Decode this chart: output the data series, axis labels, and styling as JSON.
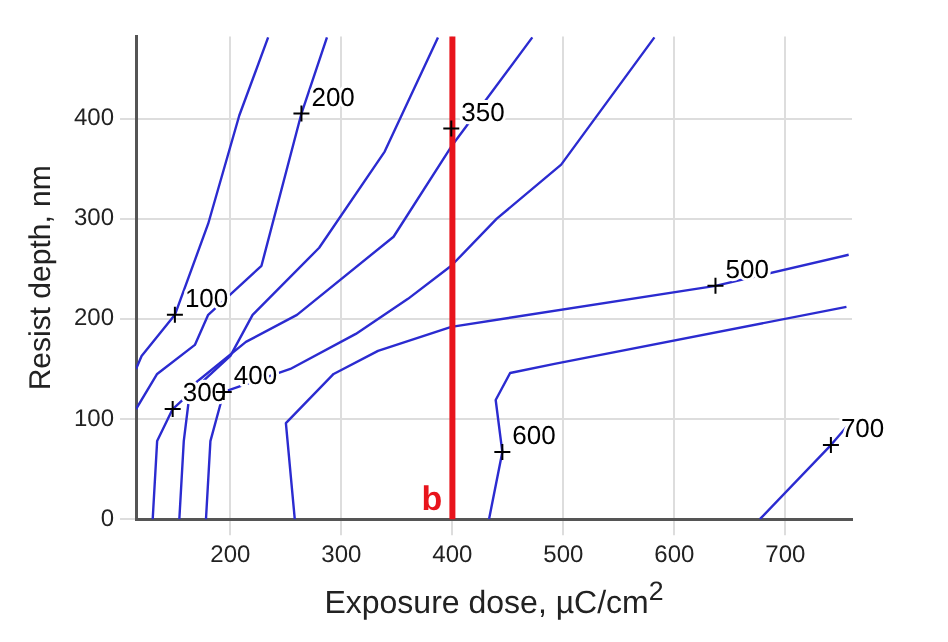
{
  "chart_data": {
    "type": "line",
    "xlabel": "Exposure dose, µC/cm$^{2}$",
    "ylabel": "Resist depth, nm",
    "xlim": [
      115,
      760
    ],
    "ylim": [
      0,
      482
    ],
    "xticks": [
      200,
      300,
      400,
      500,
      600,
      700
    ],
    "yticks": [
      0,
      100,
      200,
      300,
      400
    ],
    "grid": true,
    "legend": false,
    "marker": "none",
    "line_style": "solid",
    "series": [
      {
        "color": "#2b2bd0",
        "x": [
          115,
          120,
          150,
          180,
          208,
          234
        ],
        "values": [
          150,
          163,
          204,
          295,
          403,
          481
        ]
      },
      {
        "color": "#2b2bd0",
        "x": [
          115,
          134,
          168,
          180,
          228,
          264,
          287
        ],
        "values": [
          110,
          145,
          174,
          204,
          253,
          405,
          481
        ]
      },
      {
        "color": "#2b2bd0",
        "x": [
          130,
          134,
          148,
          200,
          220,
          280,
          339,
          387
        ],
        "values": [
          0,
          78,
          110,
          163,
          204,
          271,
          367,
          481
        ]
      },
      {
        "color": "#2b2bd0",
        "x": [
          154,
          158,
          164,
          214,
          260,
          347,
          399,
          472
        ],
        "values": [
          0,
          78,
          132,
          177,
          204,
          282,
          372,
          481
        ]
      },
      {
        "color": "#2b2bd0",
        "x": [
          178,
          182,
          194,
          254,
          313,
          360,
          399,
          440,
          498,
          582
        ],
        "values": [
          0,
          78,
          127,
          150,
          185,
          220,
          253,
          300,
          354,
          481
        ]
      },
      {
        "color": "#2b2bd0",
        "x": [
          258,
          250,
          293,
          333,
          399,
          637,
          757
        ],
        "values": [
          0,
          96,
          145,
          168,
          192,
          233,
          264
        ]
      },
      {
        "color": "#2b2bd0",
        "x": [
          433,
          445,
          439,
          452,
          492,
          755
        ],
        "values": [
          0,
          67,
          119,
          146,
          155,
          212
        ]
      },
      {
        "color": "#2b2bd0",
        "x": [
          677,
          741,
          755
        ],
        "values": [
          0,
          74,
          92
        ]
      }
    ],
    "ref_lines": [
      {
        "axis": "x",
        "value": 400,
        "label": "b",
        "color": "#e8141c"
      }
    ],
    "annotations": [
      {
        "text": "100",
        "x": 150,
        "y": 204
      },
      {
        "text": "200",
        "x": 264,
        "y": 405
      },
      {
        "text": "300",
        "x": 148,
        "y": 110
      },
      {
        "text": "350",
        "x": 399,
        "y": 390
      },
      {
        "text": "400",
        "x": 194,
        "y": 127
      },
      {
        "text": "500",
        "x": 637,
        "y": 233
      },
      {
        "text": "600",
        "x": 445,
        "y": 67
      },
      {
        "text": "700",
        "x": 741,
        "y": 74
      }
    ]
  }
}
